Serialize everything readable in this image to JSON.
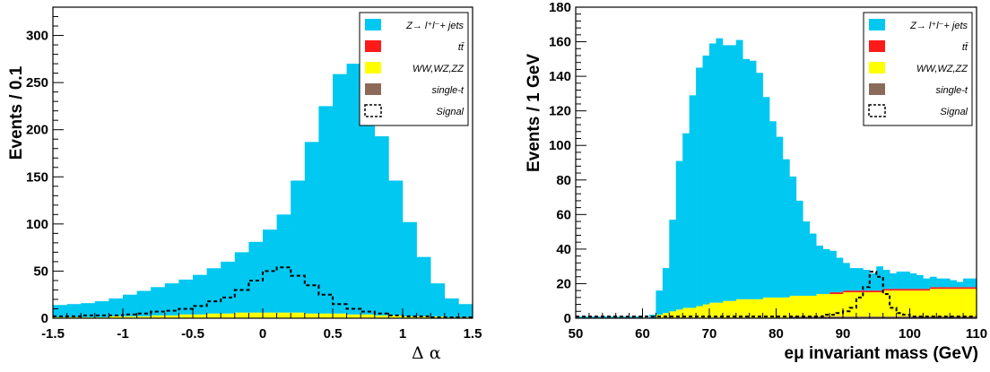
{
  "colors": {
    "zjets": "#00c8f0",
    "ttbar": "#ff1a1a",
    "diboson": "#ffff00",
    "singlet": "#8b6a5a",
    "signal_line": "#000000"
  },
  "legend": {
    "entries": [
      {
        "key": "zjets",
        "label": "Z→ l⁺l⁻+ jets"
      },
      {
        "key": "ttbar",
        "label": "tt̄"
      },
      {
        "key": "diboson",
        "label": "WW,WZ,ZZ"
      },
      {
        "key": "singlet",
        "label": "single-t"
      },
      {
        "key": "signal",
        "label": "Signal"
      }
    ]
  },
  "chart_data": [
    {
      "type": "bar",
      "style": "stacked-histogram",
      "xlabel": "Δ α",
      "ylabel": "Events / 0.1",
      "xlim": [
        -1.5,
        1.5
      ],
      "ylim": [
        0,
        330
      ],
      "xticks": [
        "-1.5",
        "-1",
        "-0.5",
        "0",
        "0.5",
        "1",
        "1.5"
      ],
      "yticks": [
        "0",
        "50",
        "100",
        "150",
        "200",
        "250",
        "300"
      ],
      "bin_edges_start": -1.5,
      "bin_width": 0.1,
      "series": [
        {
          "key": "singlet",
          "name": "single-t",
          "values": [
            0,
            0,
            0,
            0,
            0,
            0,
            0,
            0,
            0,
            0,
            0,
            0,
            0,
            0,
            0,
            0,
            0,
            0,
            0,
            0,
            0,
            0,
            0,
            0,
            0,
            0,
            0,
            0,
            0,
            0
          ]
        },
        {
          "key": "diboson",
          "name": "WW,WZ,ZZ",
          "values": [
            1,
            1,
            1,
            1,
            2,
            2,
            2,
            3,
            3,
            4,
            4,
            5,
            5,
            6,
            6,
            6,
            6,
            6,
            5,
            5,
            5,
            4,
            4,
            3,
            3,
            2,
            2,
            2,
            1,
            1
          ]
        },
        {
          "key": "ttbar",
          "name": "tt̄",
          "values": [
            0,
            0,
            0,
            0,
            0,
            0,
            0,
            0,
            0,
            0,
            0,
            0,
            0,
            0,
            0,
            0,
            0,
            0,
            0,
            0,
            0,
            0,
            0,
            0,
            0,
            0,
            0,
            0,
            0,
            0
          ]
        },
        {
          "key": "zjets",
          "name": "Z→ l⁺l⁻+ jets",
          "values": [
            13,
            14,
            15,
            17,
            19,
            23,
            27,
            30,
            34,
            37,
            42,
            48,
            55,
            64,
            75,
            88,
            104,
            140,
            182,
            220,
            254,
            266,
            241,
            190,
            143,
            100,
            63,
            35,
            20,
            14
          ]
        }
      ],
      "signal": [
        2,
        2,
        3,
        3,
        3,
        4,
        5,
        7,
        8,
        10,
        13,
        18,
        22,
        30,
        40,
        50,
        54,
        45,
        35,
        25,
        15,
        10,
        7,
        5,
        3,
        2,
        2,
        1,
        1,
        1
      ]
    },
    {
      "type": "bar",
      "style": "stacked-histogram",
      "xlabel": "eμ invariant mass (GeV)",
      "ylabel": "Events / 1 GeV",
      "xlim": [
        50,
        110
      ],
      "ylim": [
        0,
        180
      ],
      "xticks": [
        "50",
        "60",
        "70",
        "80",
        "90",
        "100",
        "110"
      ],
      "yticks": [
        "0",
        "20",
        "40",
        "60",
        "80",
        "100",
        "120",
        "140",
        "160",
        "180"
      ],
      "bin_edges_start": 50,
      "bin_width": 1,
      "series": [
        {
          "key": "singlet",
          "name": "single-t",
          "values": [
            0,
            0,
            0,
            0,
            0,
            0,
            0,
            0,
            0,
            0,
            0,
            0,
            0,
            0,
            0,
            0,
            0,
            0,
            0,
            0,
            0,
            0,
            0,
            0,
            0,
            0,
            0,
            0,
            0,
            0,
            0,
            0,
            1,
            1,
            1,
            1,
            1,
            1,
            1,
            1,
            1,
            1,
            1,
            1,
            1,
            1,
            1,
            1,
            1,
            1,
            1,
            1,
            1,
            1,
            1,
            1,
            1,
            1,
            1,
            1
          ]
        },
        {
          "key": "diboson",
          "name": "WW,WZ,ZZ",
          "values": [
            0,
            0,
            0,
            0,
            0,
            0,
            0,
            0,
            0,
            0,
            0,
            0,
            2,
            3,
            4,
            5,
            6,
            6,
            7,
            8,
            9,
            9,
            10,
            10,
            11,
            11,
            11,
            11,
            12,
            12,
            12,
            12,
            12,
            12,
            12,
            12,
            13,
            13,
            13,
            13,
            14,
            14,
            14,
            14,
            14,
            14,
            15,
            15,
            15,
            15,
            15,
            15,
            15,
            16,
            16,
            16,
            16,
            16,
            16,
            16
          ]
        },
        {
          "key": "ttbar",
          "name": "tt̄",
          "values": [
            0,
            0,
            0,
            0,
            0,
            0,
            0,
            0,
            0,
            0,
            0,
            0,
            0,
            0,
            0,
            0,
            0,
            0,
            0,
            0,
            0,
            0,
            0,
            0,
            0,
            0,
            0,
            0,
            0,
            0,
            0,
            0,
            0,
            0,
            0,
            0,
            0,
            0,
            1,
            1,
            1,
            1,
            1,
            1,
            1,
            1,
            1,
            1,
            1,
            1,
            1,
            1,
            1,
            1,
            1,
            1,
            1,
            1,
            1,
            1
          ]
        },
        {
          "key": "zjets",
          "name": "Z→ l⁺l⁻+ jets",
          "values": [
            1,
            1,
            1,
            1,
            1,
            1,
            1,
            1,
            1,
            1,
            0,
            2,
            14,
            26,
            53,
            86,
            101,
            123,
            138,
            144,
            150,
            153,
            148,
            148,
            150,
            139,
            138,
            131,
            116,
            102,
            93,
            80,
            69,
            55,
            43,
            36,
            28,
            26,
            24,
            20,
            16,
            13,
            13,
            12,
            10,
            14,
            11,
            9,
            10,
            10,
            9,
            8,
            6,
            6,
            5,
            5,
            4,
            3,
            5,
            5
          ]
        }
      ],
      "signal": [
        1,
        1,
        1,
        1,
        1,
        1,
        1,
        1,
        1,
        1,
        1,
        1,
        1,
        1,
        1,
        1,
        1,
        1,
        1,
        1,
        1,
        1,
        1,
        1,
        1,
        1,
        1,
        1,
        1,
        1,
        1,
        1,
        1,
        1,
        1,
        1,
        1,
        2,
        2,
        3,
        4,
        6,
        12,
        18,
        27,
        24,
        14,
        6,
        3,
        2,
        1,
        1,
        1,
        1,
        1,
        1,
        1,
        1,
        1,
        1
      ]
    }
  ]
}
